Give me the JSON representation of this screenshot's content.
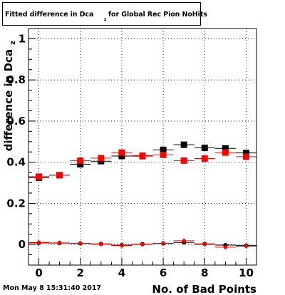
{
  "title": {
    "main": "Fitted difference in Dca",
    "subscript": "z",
    "rest": " for Global Rec Pion NoHits"
  },
  "timestamp": "Mon May  8 15:31:40 2017",
  "chart_data": {
    "type": "scatter",
    "xlabel": "No. of Bad Points",
    "ylabel": "difference in Dca",
    "ylabel_subscript": "z",
    "xlim": [
      -0.5,
      10.5
    ],
    "ylim": [
      -0.1,
      1.05
    ],
    "x_ticks": [
      0,
      2,
      4,
      6,
      8,
      10
    ],
    "y_ticks": [
      0,
      0.2,
      0.4,
      0.6,
      0.8,
      1
    ],
    "y_tick_labels": [
      "0",
      "0.2",
      "0.4",
      "0.6",
      "0.8",
      "1"
    ],
    "grid": true,
    "x_error": 0.5,
    "series": [
      {
        "marker": "square",
        "color": "#000000",
        "size": 9,
        "x": [
          0,
          1,
          2,
          3,
          4,
          5,
          6,
          7,
          8,
          9,
          10
        ],
        "y": [
          0.325,
          0.337,
          0.39,
          0.405,
          0.43,
          0.43,
          0.46,
          0.485,
          0.47,
          0.467,
          0.445
        ]
      },
      {
        "marker": "square",
        "color": "#ff0000",
        "size": 9,
        "x": [
          0,
          1,
          2,
          3,
          4,
          5,
          6,
          7,
          8,
          9,
          10
        ],
        "y": [
          0.33,
          0.337,
          0.408,
          0.42,
          0.447,
          0.432,
          0.436,
          0.408,
          0.418,
          0.447,
          0.427
        ]
      },
      {
        "marker": "circle",
        "color": "#000000",
        "size": 6,
        "x": [
          0,
          1,
          2,
          3,
          4,
          5,
          6,
          7,
          8,
          9,
          10
        ],
        "y": [
          0.008,
          0.007,
          0.005,
          0.003,
          -0.003,
          0.002,
          0.005,
          0.01,
          0.003,
          -0.003,
          -0.005
        ]
      },
      {
        "marker": "diamond",
        "color": "#ff0000",
        "size": 7,
        "x": [
          0,
          1,
          2,
          3,
          4,
          5,
          6,
          7,
          8,
          9,
          10
        ],
        "y": [
          0.01,
          0.008,
          0.006,
          0.002,
          -0.005,
          0.001,
          0.006,
          0.018,
          0.001,
          -0.013,
          -0.008
        ]
      }
    ]
  }
}
